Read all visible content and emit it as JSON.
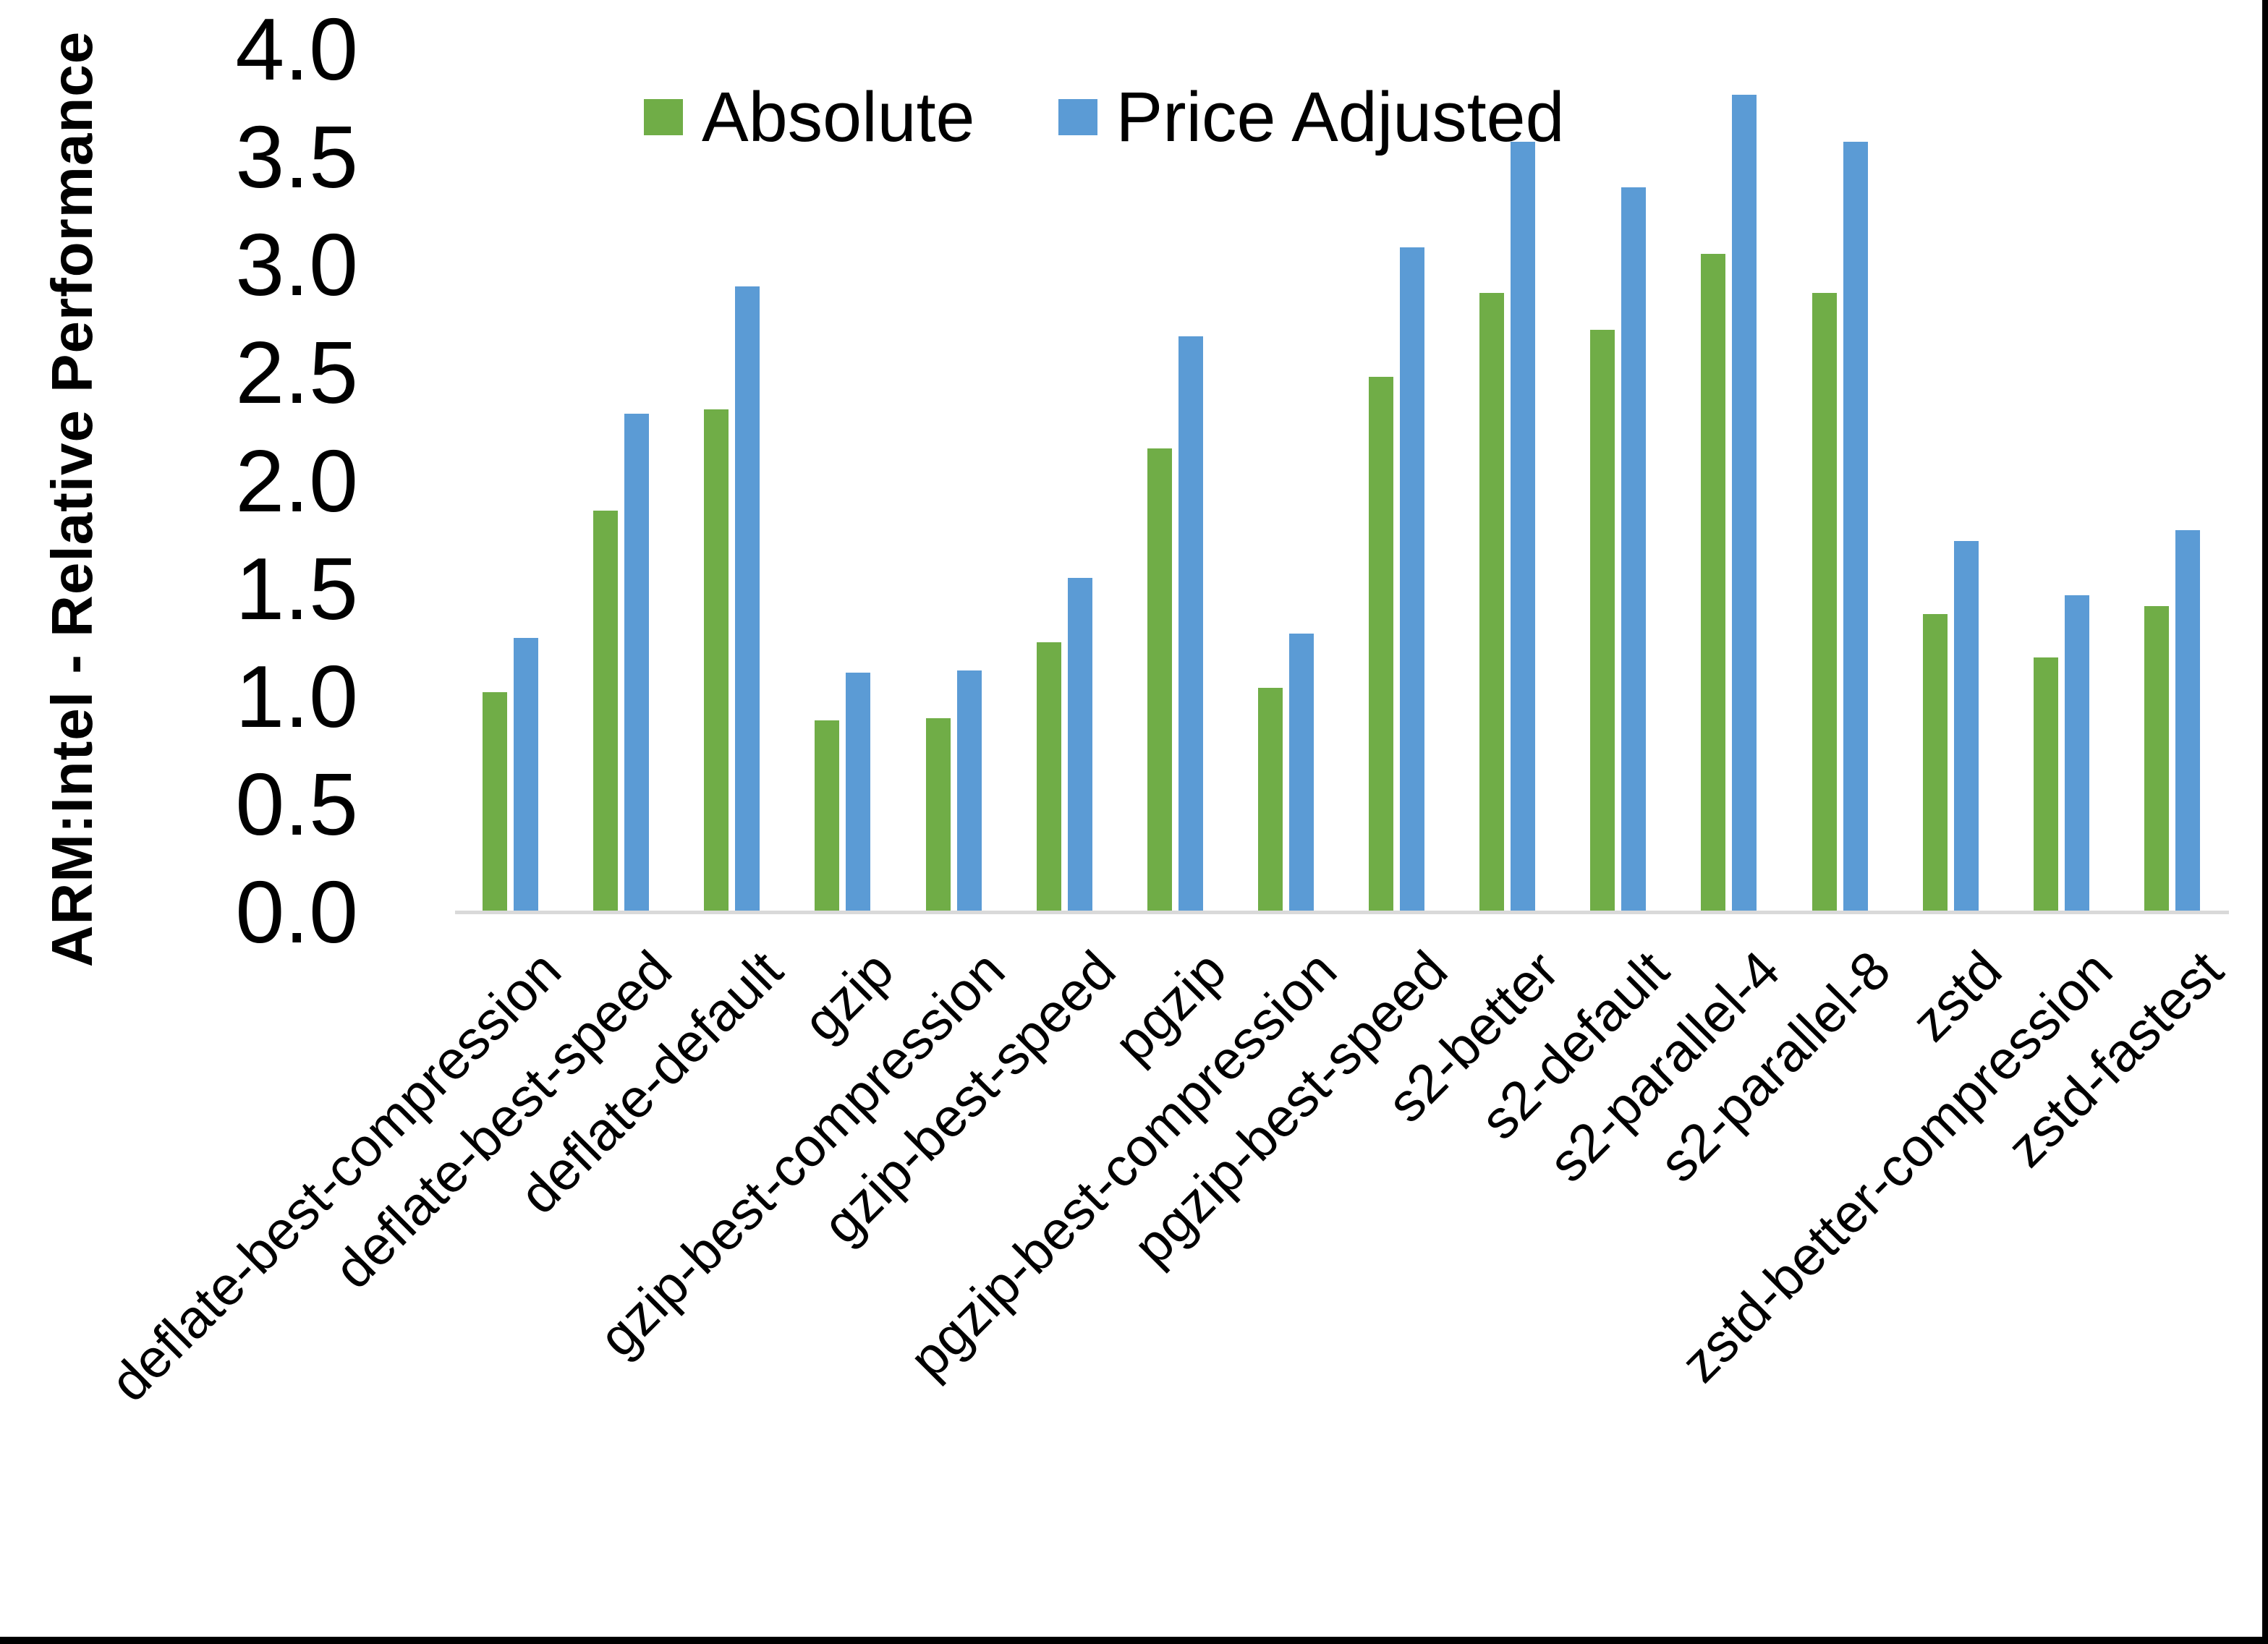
{
  "chart_data": {
    "type": "bar",
    "title": "",
    "xlabel": "",
    "ylabel": "ARM:Intel - Relative Performance",
    "ylim": [
      0,
      4
    ],
    "ytick_labels": [
      "0.0",
      "0.5",
      "1.0",
      "1.5",
      "2.0",
      "2.5",
      "3.0",
      "3.5",
      "4.0"
    ],
    "grid": false,
    "legend_position": "top",
    "axis_line_color": "#d9d9d9",
    "categories": [
      "deflate-best-compression",
      "deflate-best-speed",
      "deflate-default",
      "gzip",
      "gzip-best-compression",
      "gzip-best-speed",
      "pgzip",
      "pgzip-best-compression",
      "pgzip-best-speed",
      "s2-better",
      "s2-default",
      "s2-parallel-4",
      "s2-parallel-8",
      "zstd",
      "zstd-better-compression",
      "zstd-fastest"
    ],
    "series": [
      {
        "name": "Absolute",
        "color": "#70AD47",
        "values": [
          1.02,
          1.86,
          2.33,
          0.89,
          0.9,
          1.25,
          2.15,
          1.04,
          2.48,
          2.87,
          2.7,
          3.05,
          2.87,
          1.38,
          1.18,
          1.42
        ]
      },
      {
        "name": "Price Adjusted",
        "color": "#5B9BD5",
        "values": [
          1.27,
          2.31,
          2.9,
          1.11,
          1.12,
          1.55,
          2.67,
          1.29,
          3.08,
          3.57,
          3.36,
          3.79,
          3.57,
          1.72,
          1.47,
          1.77
        ]
      }
    ]
  },
  "frame": {
    "background": "#ffffff",
    "border_color": "#000000"
  }
}
